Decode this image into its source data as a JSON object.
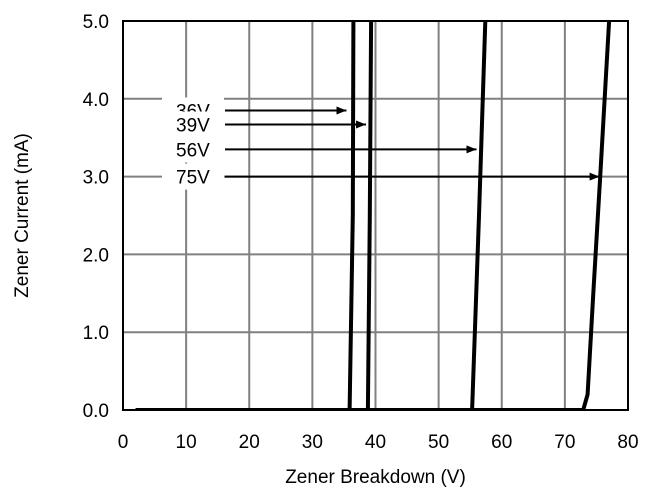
{
  "chart_data": {
    "type": "line",
    "xlabel": "Zener Breakdown (V)",
    "ylabel": "Zener Current (mA)",
    "xlim": [
      0,
      80
    ],
    "ylim": [
      0,
      5
    ],
    "grid": true,
    "xticks": [
      "0",
      "10",
      "20",
      "30",
      "40",
      "50",
      "60",
      "70",
      "80"
    ],
    "yticks": [
      "0.0",
      "1.0",
      "2.0",
      "3.0",
      "4.0",
      "5.0"
    ],
    "series": [
      {
        "name": "36V",
        "x": [
          2,
          35.9,
          36.4,
          36.5
        ],
        "y": [
          0,
          0,
          2.5,
          5.0
        ],
        "arrow_at": [
          3.85,
          35.4
        ]
      },
      {
        "name": "39V",
        "x": [
          2,
          38.8,
          39.1,
          39.3
        ],
        "y": [
          0,
          0,
          2.5,
          5.0
        ],
        "arrow_at": [
          3.67,
          38.5
        ]
      },
      {
        "name": "56V",
        "x": [
          2,
          55.3,
          56.4,
          57.4
        ],
        "y": [
          0,
          0,
          2.5,
          5.0
        ],
        "arrow_at": [
          3.35,
          56.0
        ]
      },
      {
        "name": "75V",
        "x": [
          2,
          72.9,
          73.6,
          74.5,
          75.6,
          77.0
        ],
        "y": [
          0,
          0,
          0.2,
          1.5,
          3.0,
          5.0
        ],
        "arrow_at": [
          3.0,
          75.5
        ]
      }
    ]
  }
}
